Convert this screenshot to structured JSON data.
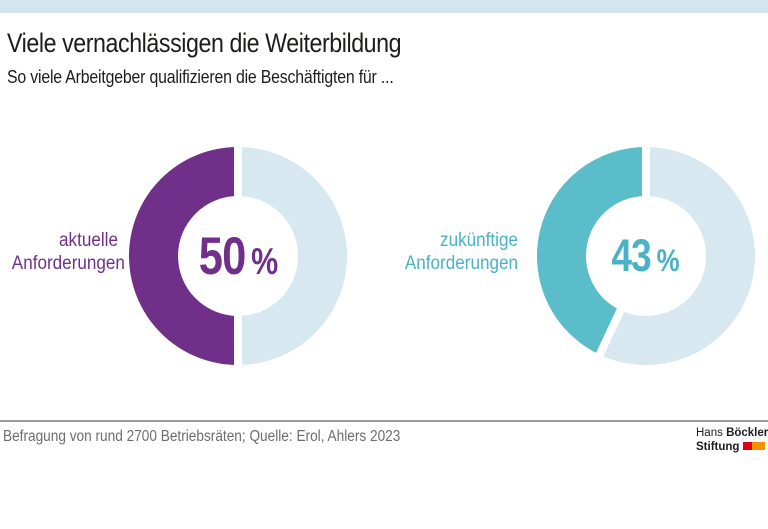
{
  "page": {
    "title": "Viele vernachlässigen die Weiterbildung",
    "subtitle": "So viele Arbeitgeber qualifizieren die Beschäftigten für ...",
    "top_bar_color": "#d3e5ee"
  },
  "chart_data": [
    {
      "type": "pie",
      "variant": "donut",
      "label": "aktuelle Anforderungen",
      "label_lines": [
        "aktuelle",
        "Anforderungen"
      ],
      "value": 50,
      "remainder": 50,
      "value_label": "50",
      "unit": "%",
      "start": "top",
      "direction": "counterclockwise",
      "color": "#70308a",
      "text_color": "#70308a",
      "remainder_color": "#d8e8f0"
    },
    {
      "type": "pie",
      "variant": "donut",
      "label": "zukünftige Anforderungen",
      "label_lines": [
        "zukünftige",
        "Anforderungen"
      ],
      "value": 43,
      "remainder": 57,
      "value_label": "43",
      "unit": "%",
      "start": "top",
      "direction": "counterclockwise",
      "color": "#5abdc9",
      "text_color": "#49b2c4",
      "remainder_color": "#d8e8f0"
    }
  ],
  "footer": {
    "source": "Befragung von rund 2700 Betriebsräten; Quelle: Erol, Ahlers 2023",
    "divider_color": "#9a9a9a"
  },
  "logo": {
    "line1_regular": "Hans",
    "line1_bold": "Böckler",
    "line2_bold": "Stiftung",
    "flag_red": "#e2001a",
    "flag_orange": "#f39200"
  }
}
